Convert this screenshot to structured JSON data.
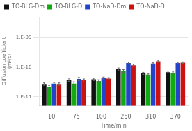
{
  "chart_data": {
    "type": "bar",
    "xlabel": "Time/min",
    "ylabel": "Diffusion coefficient\n(m²/s)",
    "categories": [
      "10",
      "75",
      "100",
      "250",
      "310",
      "370"
    ],
    "series": [
      {
        "name": "TO-BLG-Dm",
        "color": "#111111",
        "values": [
          2.7e-11,
          3.8e-11,
          3.9e-11,
          8.5e-11,
          6.2e-11,
          6.8e-11
        ],
        "errors": [
          2.5e-12,
          5e-12,
          3.5e-12,
          9e-12,
          5e-12,
          5e-12
        ]
      },
      {
        "name": "TO-BLG-D",
        "color": "#11aa11",
        "values": [
          2.2e-11,
          2.8e-11,
          3.4e-11,
          7.5e-11,
          5.6e-11,
          6.4e-11
        ],
        "errors": [
          2.5e-12,
          4e-12,
          3.5e-12,
          8e-12,
          5e-12,
          5e-12
        ]
      },
      {
        "name": "TO-NaD-Dm",
        "color": "#2244cc",
        "values": [
          2.8e-11,
          4e-11,
          4.3e-11,
          1.38e-10,
          1.32e-10,
          1.38e-10
        ],
        "errors": [
          2.5e-12,
          5e-12,
          3.5e-12,
          1.1e-11,
          8e-12,
          8e-12
        ]
      },
      {
        "name": "TO-NaD-D",
        "color": "#cc1111",
        "values": [
          2.7e-11,
          3.6e-11,
          4.1e-11,
          1.15e-10,
          1.58e-10,
          1.42e-10
        ],
        "errors": [
          2.5e-12,
          4e-12,
          3.5e-12,
          1.1e-11,
          1.3e-11,
          8e-12
        ]
      }
    ],
    "log": "y",
    "ylim": [
      5e-12,
      5e-09
    ],
    "yticks": [
      {
        "value": 1e-11,
        "label": "1.E-11"
      },
      {
        "value": 1e-10,
        "label": "1.E-10"
      },
      {
        "value": 1e-09,
        "label": "1.E-09"
      }
    ],
    "grid": true,
    "legend": "upper left"
  }
}
